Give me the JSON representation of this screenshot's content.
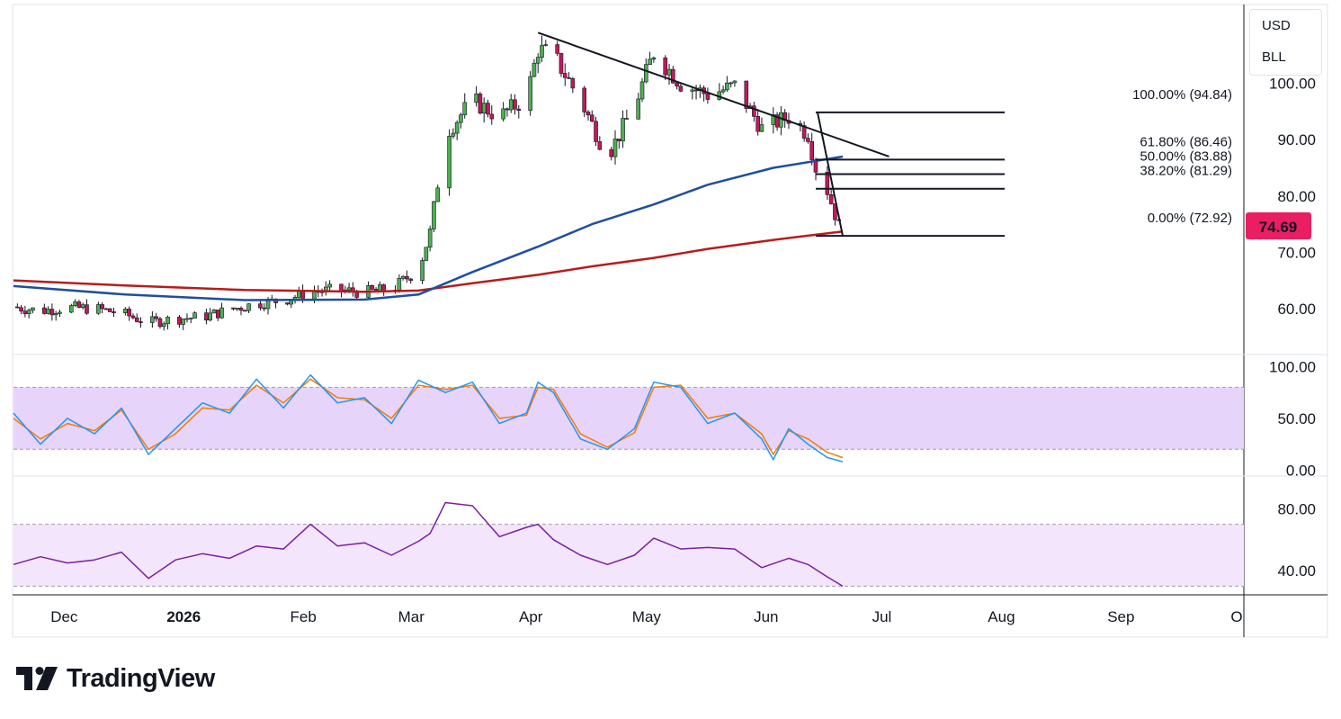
{
  "header": {
    "currency": "USD",
    "symbol": "BLL"
  },
  "brand": {
    "name": "TradingView"
  },
  "colors": {
    "up": "#26a69a",
    "down": "#e91e63",
    "candle_up": "#4caf50",
    "candle_down": "#c2185b",
    "ma_fast": "#1f4e9e",
    "ma_slow": "#b71c1c",
    "stoch_k": "#2196f3",
    "stoch_d": "#f57c00",
    "rsi": "#7b1fa2",
    "stoch_band": "#e7d4fb",
    "rsi_band": "#f3e5fc",
    "price_badge": "#e91e63"
  },
  "chart_data": [
    {
      "type": "candlestick",
      "name": "price",
      "ylim": [
        52,
        114
      ],
      "y_ticks": [
        60,
        70,
        80,
        90,
        100
      ],
      "y_tick_labels": [
        "60.00",
        "70.00",
        "80.00",
        "90.00",
        "100.00"
      ],
      "x_tick_labels": [
        "Dec",
        "2026",
        "Feb",
        "Mar",
        "Apr",
        "May",
        "Jun",
        "Jul",
        "Aug",
        "Sep",
        "O"
      ],
      "last_price": 74.69,
      "last_price_label": "74.69",
      "close_points": [
        [
          "2025-11-16",
          60.3
        ],
        [
          "2025-11-23",
          59.6
        ],
        [
          "2025-11-30",
          60.2
        ],
        [
          "2025-12-07",
          60.0
        ],
        [
          "2025-12-14",
          59.2
        ],
        [
          "2025-12-21",
          57.5
        ],
        [
          "2025-12-28",
          58.2
        ],
        [
          "2026-01-04",
          58.5
        ],
        [
          "2026-01-11",
          59.8
        ],
        [
          "2026-01-18",
          60.9
        ],
        [
          "2026-01-25",
          61.5
        ],
        [
          "2026-02-01",
          63.0
        ],
        [
          "2026-02-08",
          63.3
        ],
        [
          "2026-02-15",
          62.9
        ],
        [
          "2026-02-22",
          63.4
        ],
        [
          "2026-03-01",
          67.0
        ],
        [
          "2026-03-04",
          73.5
        ],
        [
          "2026-03-08",
          91.0
        ],
        [
          "2026-03-15",
          97.0
        ],
        [
          "2026-03-22",
          94.0
        ],
        [
          "2026-03-29",
          97.5
        ],
        [
          "2026-04-01",
          106.0
        ],
        [
          "2026-04-05",
          105.0
        ],
        [
          "2026-04-12",
          97.0
        ],
        [
          "2026-04-19",
          87.0
        ],
        [
          "2026-04-26",
          96.0
        ],
        [
          "2026-05-01",
          105.5
        ],
        [
          "2026-05-08",
          100.0
        ],
        [
          "2026-05-15",
          98.0
        ],
        [
          "2026-05-22",
          99.5
        ],
        [
          "2026-05-29",
          92.0
        ],
        [
          "2026-06-05",
          94.0
        ],
        [
          "2026-06-10",
          91.0
        ],
        [
          "2026-06-12",
          85.0
        ],
        [
          "2026-06-15",
          81.0
        ],
        [
          "2026-06-18",
          74.69
        ]
      ],
      "ma_fast_points": [
        [
          "2025-11-16",
          64.0
        ],
        [
          "2025-12-15",
          62.5
        ],
        [
          "2026-01-15",
          61.5
        ],
        [
          "2026-02-15",
          61.6
        ],
        [
          "2026-03-01",
          62.5
        ],
        [
          "2026-03-15",
          66.5
        ],
        [
          "2026-04-01",
          71.0
        ],
        [
          "2026-04-15",
          75.0
        ],
        [
          "2026-05-01",
          78.5
        ],
        [
          "2026-05-15",
          82.0
        ],
        [
          "2026-06-01",
          85.0
        ],
        [
          "2026-06-19",
          87.0
        ]
      ],
      "ma_slow_points": [
        [
          "2025-11-16",
          65.0
        ],
        [
          "2025-12-15",
          64.1
        ],
        [
          "2026-01-15",
          63.3
        ],
        [
          "2026-02-15",
          63.0
        ],
        [
          "2026-03-01",
          63.2
        ],
        [
          "2026-03-15",
          64.5
        ],
        [
          "2026-04-01",
          66.0
        ],
        [
          "2026-04-15",
          67.5
        ],
        [
          "2026-05-01",
          69.0
        ],
        [
          "2026-05-15",
          70.6
        ],
        [
          "2026-06-01",
          72.2
        ],
        [
          "2026-06-19",
          73.7
        ]
      ],
      "trendline": [
        [
          "2026-04-01",
          109.0
        ],
        [
          "2026-07-01",
          87.0
        ]
      ],
      "fibonacci": [
        {
          "level": "100.00%",
          "value": 94.84,
          "label": "100.00% (94.84)"
        },
        {
          "level": "61.80%",
          "value": 86.46,
          "label": "61.80% (86.46)"
        },
        {
          "level": "50.00%",
          "value": 83.88,
          "label": "50.00% (83.88)"
        },
        {
          "level": "38.20%",
          "value": 81.29,
          "label": "38.20% (81.29)"
        },
        {
          "level": "0.00%",
          "value": 72.92,
          "label": "0.00% (72.92)"
        }
      ],
      "fib_range": [
        "2026-06-12",
        "2026-07-31"
      ]
    },
    {
      "type": "line",
      "name": "stochastic",
      "ylim": [
        -5,
        110
      ],
      "y_ticks": [
        0,
        50,
        100
      ],
      "y_tick_labels": [
        "0.00",
        "50.00",
        "100.00"
      ],
      "band": [
        20,
        80
      ],
      "k_points": [
        [
          "2025-11-16",
          55
        ],
        [
          "2025-11-23",
          25
        ],
        [
          "2025-11-30",
          50
        ],
        [
          "2025-12-07",
          35
        ],
        [
          "2025-12-14",
          60
        ],
        [
          "2025-12-21",
          15
        ],
        [
          "2025-12-28",
          40
        ],
        [
          "2026-01-04",
          65
        ],
        [
          "2026-01-11",
          55
        ],
        [
          "2026-01-18",
          88
        ],
        [
          "2026-01-25",
          60
        ],
        [
          "2026-02-01",
          92
        ],
        [
          "2026-02-08",
          65
        ],
        [
          "2026-02-15",
          70
        ],
        [
          "2026-02-22",
          45
        ],
        [
          "2026-03-01",
          87
        ],
        [
          "2026-03-08",
          75
        ],
        [
          "2026-03-15",
          85
        ],
        [
          "2026-03-22",
          45
        ],
        [
          "2026-03-29",
          55
        ],
        [
          "2026-04-01",
          85
        ],
        [
          "2026-04-05",
          75
        ],
        [
          "2026-04-12",
          30
        ],
        [
          "2026-04-19",
          20
        ],
        [
          "2026-04-26",
          40
        ],
        [
          "2026-05-01",
          85
        ],
        [
          "2026-05-08",
          80
        ],
        [
          "2026-05-15",
          45
        ],
        [
          "2026-05-22",
          55
        ],
        [
          "2026-05-29",
          30
        ],
        [
          "2026-06-01",
          10
        ],
        [
          "2026-06-05",
          40
        ],
        [
          "2026-06-10",
          25
        ],
        [
          "2026-06-15",
          12
        ],
        [
          "2026-06-19",
          8
        ]
      ],
      "d_points": [
        [
          "2025-11-16",
          50
        ],
        [
          "2025-11-23",
          30
        ],
        [
          "2025-11-30",
          45
        ],
        [
          "2025-12-07",
          38
        ],
        [
          "2025-12-14",
          58
        ],
        [
          "2025-12-21",
          20
        ],
        [
          "2025-12-28",
          35
        ],
        [
          "2026-01-04",
          60
        ],
        [
          "2026-01-11",
          58
        ],
        [
          "2026-01-18",
          82
        ],
        [
          "2026-01-25",
          65
        ],
        [
          "2026-02-01",
          88
        ],
        [
          "2026-02-08",
          70
        ],
        [
          "2026-02-15",
          68
        ],
        [
          "2026-02-22",
          50
        ],
        [
          "2026-03-01",
          82
        ],
        [
          "2026-03-08",
          78
        ],
        [
          "2026-03-15",
          82
        ],
        [
          "2026-03-22",
          50
        ],
        [
          "2026-03-29",
          53
        ],
        [
          "2026-04-01",
          80
        ],
        [
          "2026-04-05",
          78
        ],
        [
          "2026-04-12",
          35
        ],
        [
          "2026-04-19",
          22
        ],
        [
          "2026-04-26",
          36
        ],
        [
          "2026-05-01",
          80
        ],
        [
          "2026-05-08",
          82
        ],
        [
          "2026-05-15",
          50
        ],
        [
          "2026-05-22",
          55
        ],
        [
          "2026-05-29",
          35
        ],
        [
          "2026-06-01",
          15
        ],
        [
          "2026-06-05",
          38
        ],
        [
          "2026-06-10",
          30
        ],
        [
          "2026-06-15",
          17
        ],
        [
          "2026-06-19",
          12
        ]
      ]
    },
    {
      "type": "line",
      "name": "rsi",
      "ylim": [
        25,
        100
      ],
      "y_ticks": [
        40,
        80
      ],
      "y_tick_labels": [
        "40.00",
        "80.00"
      ],
      "band": [
        30,
        70
      ],
      "points": [
        [
          "2025-11-16",
          44
        ],
        [
          "2025-11-23",
          49
        ],
        [
          "2025-11-30",
          45
        ],
        [
          "2025-12-07",
          47
        ],
        [
          "2025-12-14",
          52
        ],
        [
          "2025-12-21",
          35
        ],
        [
          "2025-12-28",
          47
        ],
        [
          "2026-01-04",
          51
        ],
        [
          "2026-01-11",
          48
        ],
        [
          "2026-01-18",
          56
        ],
        [
          "2026-01-25",
          54
        ],
        [
          "2026-02-01",
          70
        ],
        [
          "2026-02-08",
          56
        ],
        [
          "2026-02-15",
          58
        ],
        [
          "2026-02-22",
          50
        ],
        [
          "2026-03-01",
          59
        ],
        [
          "2026-03-04",
          64
        ],
        [
          "2026-03-08",
          84
        ],
        [
          "2026-03-15",
          82
        ],
        [
          "2026-03-22",
          62
        ],
        [
          "2026-03-29",
          68
        ],
        [
          "2026-04-01",
          70
        ],
        [
          "2026-04-05",
          60
        ],
        [
          "2026-04-12",
          50
        ],
        [
          "2026-04-19",
          44
        ],
        [
          "2026-04-26",
          50
        ],
        [
          "2026-05-01",
          61
        ],
        [
          "2026-05-08",
          54
        ],
        [
          "2026-05-15",
          55
        ],
        [
          "2026-05-22",
          54
        ],
        [
          "2026-05-29",
          42
        ],
        [
          "2026-06-05",
          48
        ],
        [
          "2026-06-10",
          44
        ],
        [
          "2026-06-15",
          36
        ],
        [
          "2026-06-19",
          30
        ]
      ]
    }
  ]
}
